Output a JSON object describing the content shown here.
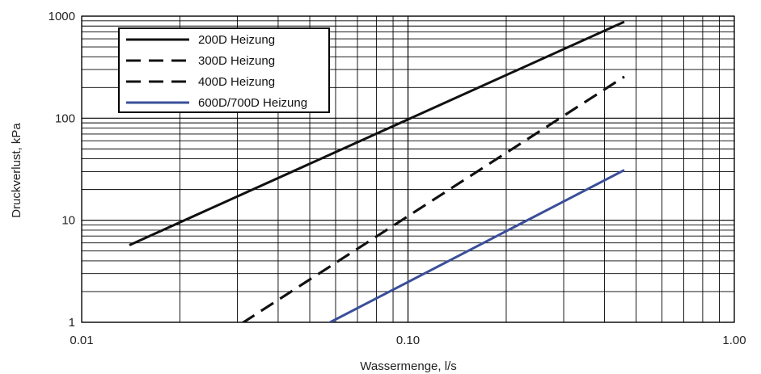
{
  "chart_data": {
    "type": "line",
    "title": "",
    "xlabel": "Wassermenge, l/s",
    "ylabel": "Druckverlust, kPa",
    "xscale": "log",
    "yscale": "log",
    "xlim": [
      0.01,
      1.0
    ],
    "ylim": [
      1,
      1000
    ],
    "grid": true,
    "legend_position": "top-left",
    "x_tick_labels": [
      {
        "value": 0.01,
        "label": "0.01"
      },
      {
        "value": 0.1,
        "label": "0.10"
      },
      {
        "value": 1.0,
        "label": "1.00"
      }
    ],
    "y_tick_labels": [
      {
        "value": 1,
        "label": "1"
      },
      {
        "value": 10,
        "label": "10"
      },
      {
        "value": 100,
        "label": "100"
      },
      {
        "value": 1000,
        "label": "1000"
      }
    ],
    "series": [
      {
        "name": "200D Heizung",
        "color": "#111111",
        "dash": "solid",
        "points": [
          [
            0.014,
            5.7
          ],
          [
            0.46,
            880
          ]
        ]
      },
      {
        "name": "300D Heizung",
        "color": "#111111",
        "dash": "dashed",
        "points": [
          [
            0.031,
            0.98
          ],
          [
            0.46,
            255
          ]
        ]
      },
      {
        "name": "400D Heizung",
        "color": "#111111",
        "dash": "dashed",
        "points": [
          [
            0.031,
            0.98
          ],
          [
            0.46,
            255
          ]
        ]
      },
      {
        "name": "600D/700D Heizung",
        "color": "#3a4f9a",
        "dash": "solid",
        "points": [
          [
            0.057,
            0.98
          ],
          [
            0.46,
            31
          ]
        ]
      }
    ]
  }
}
